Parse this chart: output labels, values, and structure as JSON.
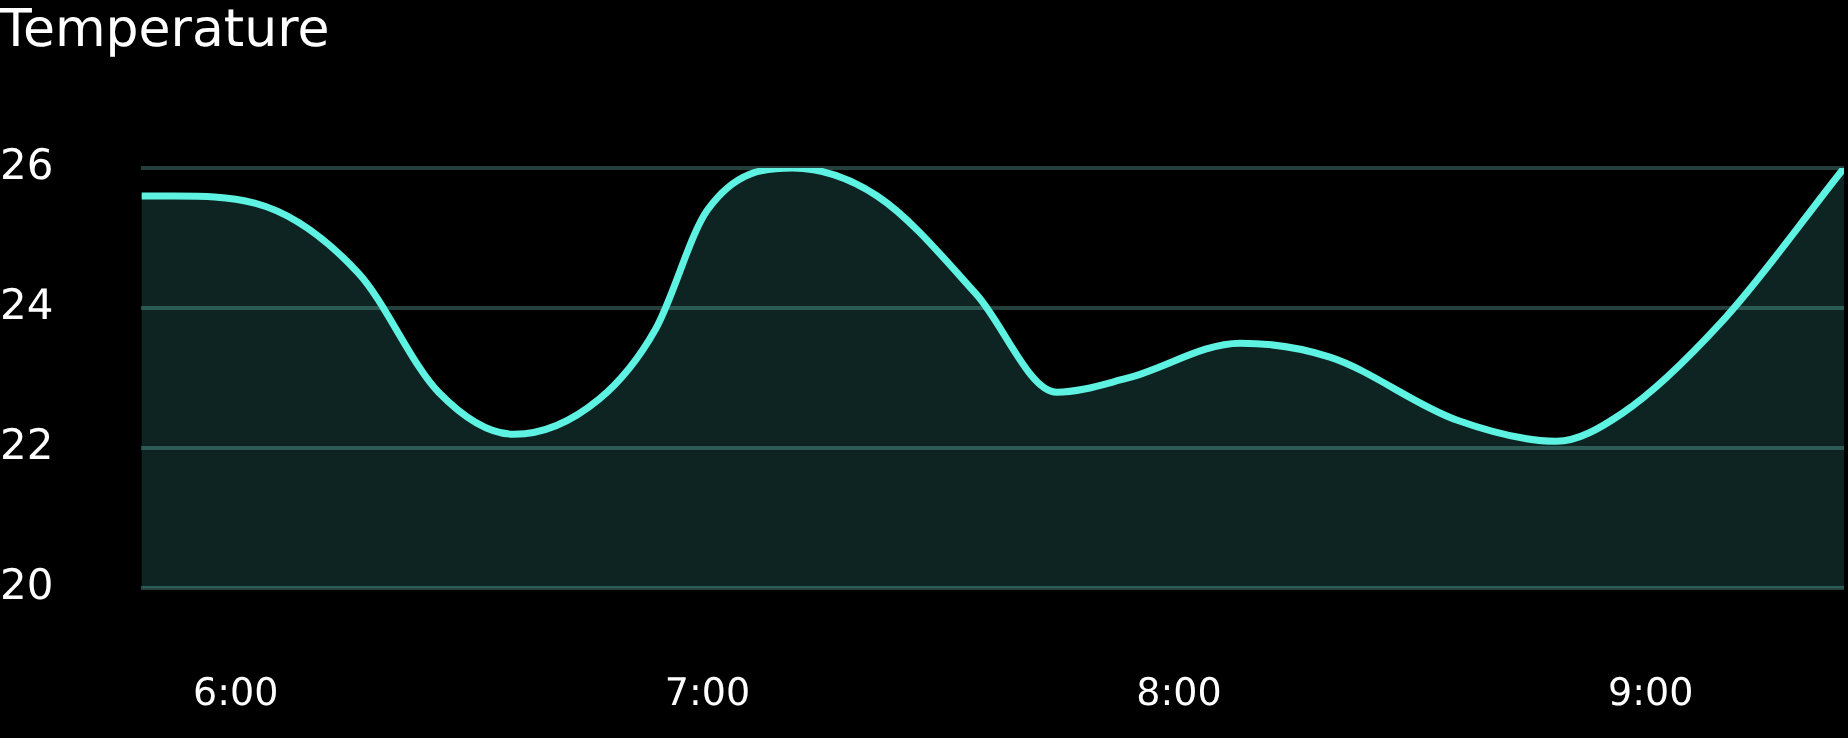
{
  "chart_data": {
    "type": "area",
    "title": "Temperature",
    "x": [
      5.8,
      5.87,
      6.04,
      6.26,
      6.43,
      6.59,
      6.77,
      6.89,
      7.0,
      7.18,
      7.36,
      7.57,
      7.74,
      7.89,
      8.13,
      8.32,
      8.59,
      8.8,
      8.94,
      9.15,
      9.41
    ],
    "series": [
      {
        "color": "#5ef2e3",
        "values": [
          25.6,
          25.6,
          25.5,
          24.5,
          22.8,
          22.2,
          22.7,
          23.7,
          25.4,
          26.0,
          25.6,
          24.2,
          22.8,
          23.0,
          23.5,
          23.3,
          22.4,
          22.1,
          22.5,
          23.8,
          26.0
        ]
      }
    ],
    "xlim": [
      5.8,
      9.41
    ],
    "xticks": [
      {
        "value": 6,
        "label": "6:00"
      },
      {
        "value": 7,
        "label": "7:00"
      },
      {
        "value": 8,
        "label": "8:00"
      },
      {
        "value": 9,
        "label": "9:00"
      }
    ],
    "ylim": [
      20,
      26
    ],
    "yticks": [
      20,
      22,
      24,
      26
    ],
    "grid": "y",
    "legend": false,
    "marker": "none",
    "line_style": "solid"
  }
}
